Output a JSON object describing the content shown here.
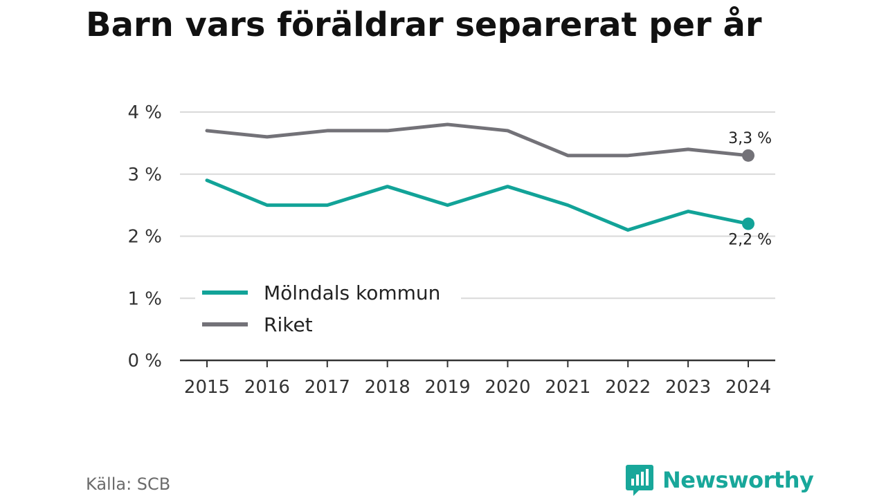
{
  "title": "Barn vars föräldrar separerat per år",
  "source": "Källa: SCB",
  "brand": {
    "name": "Newsworthy",
    "icon": "newsworthy-chart-bubble-icon",
    "color": "#18a79a"
  },
  "chart_data": {
    "type": "line",
    "title": "Barn vars föräldrar separerat per år",
    "x": [
      "2015",
      "2016",
      "2017",
      "2018",
      "2019",
      "2020",
      "2021",
      "2022",
      "2023",
      "2024"
    ],
    "y_ticks": [
      0,
      1,
      2,
      3,
      4
    ],
    "y_tick_labels": [
      "0 %",
      "1 %",
      "2 %",
      "3 %",
      "4 %"
    ],
    "ylim": [
      0,
      4
    ],
    "unit": "%",
    "grid": true,
    "legend_position": "bottom-left",
    "series": [
      {
        "name": "Mölndals kommun",
        "color": "#12a398",
        "values": [
          2.9,
          2.5,
          2.5,
          2.8,
          2.5,
          2.8,
          2.5,
          2.1,
          2.4,
          2.2
        ],
        "end_label": "2,2 %"
      },
      {
        "name": "Riket",
        "color": "#737278",
        "values": [
          3.7,
          3.6,
          3.7,
          3.7,
          3.8,
          3.7,
          3.3,
          3.3,
          3.4,
          3.3
        ],
        "end_label": "3,3 %"
      }
    ]
  }
}
